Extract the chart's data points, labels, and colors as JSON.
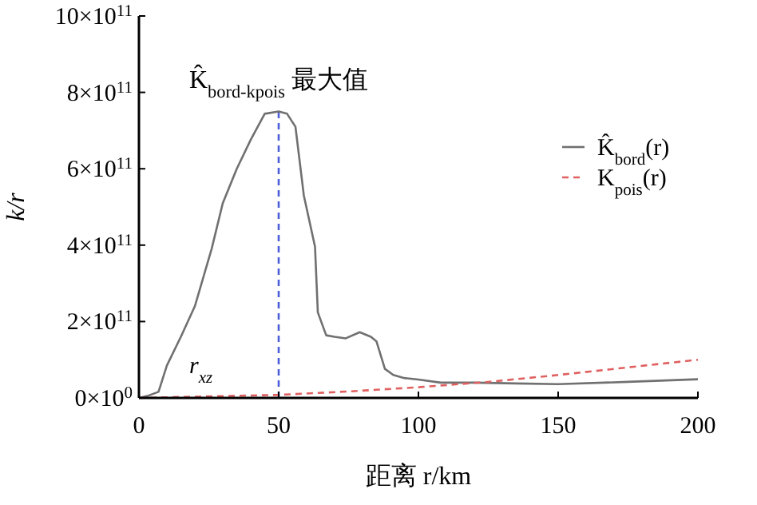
{
  "chart_data": {
    "type": "line",
    "xlabel": "距离 r/km",
    "ylabel": "k/r",
    "xlim": [
      0,
      200
    ],
    "xticks": [
      0,
      50,
      100,
      150,
      200
    ],
    "ylim": [
      0,
      1000000000000
    ],
    "yticks": [
      {
        "value": 0,
        "label": "0×10$^{0}$"
      },
      {
        "value": 200000000000,
        "label": "2×10$^{11}$"
      },
      {
        "value": 400000000000,
        "label": "4×10$^{11}$"
      },
      {
        "value": 600000000000,
        "label": "6×10$^{11}$"
      },
      {
        "value": 800000000000,
        "label": "8×10$^{11}$"
      },
      {
        "value": 1000000000000,
        "label": "10×10$^{11}$"
      }
    ],
    "series": [
      {
        "name": "K̂$_{bord}$(r)",
        "color": "#707070",
        "line_style": "solid",
        "x": [
          0,
          3,
          7,
          10,
          15,
          20,
          26,
          30,
          35,
          40,
          45,
          50,
          53,
          56,
          59,
          63,
          64,
          67,
          70,
          74,
          79,
          83,
          85,
          88,
          91,
          95,
          100,
          108,
          120,
          135,
          150,
          175,
          200
        ],
        "values": [
          0,
          5000000000,
          16000000000,
          85000000000,
          160000000000,
          240000000000,
          390000000000,
          510000000000,
          600000000000,
          676000000000,
          744000000000,
          750000000000,
          744000000000,
          710000000000,
          530000000000,
          396000000000,
          224000000000,
          164000000000,
          160000000000,
          156000000000,
          172000000000,
          160000000000,
          148000000000,
          76000000000,
          60000000000,
          52000000000,
          48000000000,
          40000000000,
          40000000000,
          38000000000,
          36000000000,
          42000000000,
          49000000000
        ]
      },
      {
        "name": "K$_{pois}$(r)",
        "color": "#e06060",
        "line_style": "dashed",
        "x": [
          0,
          25,
          50,
          75,
          100,
          125,
          150,
          175,
          200
        ],
        "values": [
          0,
          4000000000,
          8000000000,
          17000000000,
          28000000000,
          42000000000,
          60000000000,
          80000000000,
          100000000000
        ]
      }
    ],
    "ref_lines": [
      {
        "axis": "x",
        "value": 50,
        "color": "#4a5fd8",
        "line_style": "dashed"
      }
    ],
    "annotations": [
      {
        "text": "K̂$_{bord-kpois}$ 最大值",
        "x": 50,
        "y": 750000000000
      },
      "r$_{xz}$"
    ],
    "legend": "right",
    "grid": false,
    "marker": "none"
  }
}
